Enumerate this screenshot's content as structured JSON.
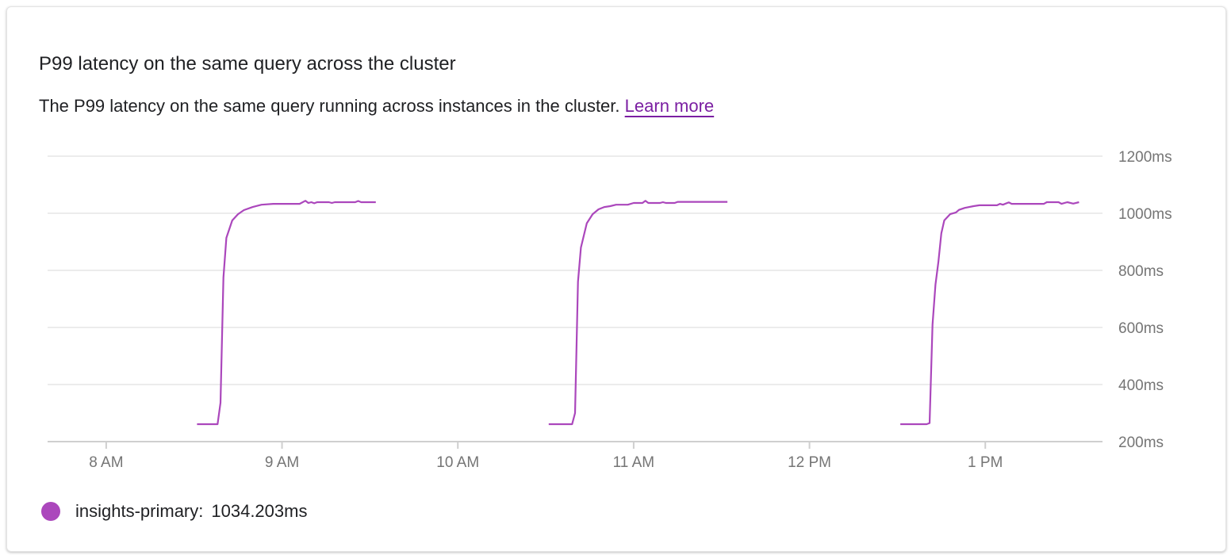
{
  "card": {
    "title": "P99 latency on the same query across the cluster",
    "description": "The P99 latency on the same query running across instances in the cluster.",
    "learn_more_label": "Learn more"
  },
  "legend": {
    "series_label": "insights-primary:",
    "current_value": "1034.203ms"
  },
  "chart_data": {
    "type": "line",
    "title": "",
    "xlabel": "",
    "ylabel": "",
    "xlim": [
      "07:40",
      "13:40"
    ],
    "ylim": [
      200,
      1200
    ],
    "x_ticks": [
      {
        "t": "08:00",
        "label": "8 AM"
      },
      {
        "t": "09:00",
        "label": "9 AM"
      },
      {
        "t": "10:00",
        "label": "10 AM"
      },
      {
        "t": "11:00",
        "label": "11 AM"
      },
      {
        "t": "12:00",
        "label": "12 PM"
      },
      {
        "t": "13:00",
        "label": "1 PM"
      }
    ],
    "y_ticks": [
      {
        "v": 1200,
        "label": "1200ms"
      },
      {
        "v": 1000,
        "label": "1000ms"
      },
      {
        "v": 800,
        "label": "800ms"
      },
      {
        "v": 600,
        "label": "600ms"
      },
      {
        "v": 400,
        "label": "400ms"
      },
      {
        "v": 200,
        "label": "200ms"
      }
    ],
    "grid": true,
    "legend_position": "bottom-left",
    "color": "#ab47bc",
    "series": [
      {
        "name": "insights-primary",
        "segments": [
          [
            [
              "08:31",
              261
            ],
            [
              "08:38",
              261
            ],
            [
              "08:39",
              336
            ],
            [
              "08:40",
              775
            ],
            [
              "08:41",
              914
            ],
            [
              "08:43",
              975
            ],
            [
              "08:45",
              997
            ],
            [
              "08:47",
              1011
            ],
            [
              "08:50",
              1022
            ],
            [
              "08:53",
              1030
            ],
            [
              "08:57",
              1033
            ],
            [
              "09:06",
              1033
            ],
            [
              "09:08",
              1044
            ],
            [
              "09:09",
              1036
            ],
            [
              "09:10",
              1039
            ],
            [
              "09:11",
              1035
            ],
            [
              "09:12",
              1039
            ],
            [
              "09:16",
              1039
            ],
            [
              "09:17",
              1036
            ],
            [
              "09:18",
              1039
            ],
            [
              "09:25",
              1039
            ],
            [
              "09:26",
              1043
            ],
            [
              "09:27",
              1039
            ],
            [
              "09:32",
              1039
            ]
          ],
          [
            [
              "10:31",
              261
            ],
            [
              "10:39",
              261
            ],
            [
              "10:40",
              300
            ],
            [
              "10:41",
              760
            ],
            [
              "10:42",
              880
            ],
            [
              "10:44",
              965
            ],
            [
              "10:46",
              997
            ],
            [
              "10:48",
              1014
            ],
            [
              "10:50",
              1022
            ],
            [
              "10:52",
              1025
            ],
            [
              "10:54",
              1030
            ],
            [
              "10:58",
              1030
            ],
            [
              "11:00",
              1036
            ],
            [
              "11:03",
              1036
            ],
            [
              "11:04",
              1044
            ],
            [
              "11:05",
              1036
            ],
            [
              "11:09",
              1036
            ],
            [
              "11:10",
              1039
            ],
            [
              "11:11",
              1036
            ],
            [
              "11:14",
              1036
            ],
            [
              "11:15",
              1040
            ],
            [
              "11:32",
              1040
            ]
          ],
          [
            [
              "12:31",
              261
            ],
            [
              "12:40",
              261
            ],
            [
              "12:41",
              265
            ],
            [
              "12:42",
              610
            ],
            [
              "12:43",
              750
            ],
            [
              "12:44",
              830
            ],
            [
              "12:45",
              930
            ],
            [
              "12:46",
              975
            ],
            [
              "12:48",
              997
            ],
            [
              "12:50",
              1003
            ],
            [
              "12:51",
              1012
            ],
            [
              "12:53",
              1019
            ],
            [
              "12:56",
              1025
            ],
            [
              "12:58",
              1028
            ],
            [
              "13:04",
              1028
            ],
            [
              "13:05",
              1033
            ],
            [
              "13:06",
              1030
            ],
            [
              "13:08",
              1038
            ],
            [
              "13:09",
              1033
            ],
            [
              "13:20",
              1033
            ],
            [
              "13:21",
              1039
            ],
            [
              "13:25",
              1039
            ],
            [
              "13:26",
              1033
            ],
            [
              "13:28",
              1039
            ],
            [
              "13:30",
              1034
            ],
            [
              "13:32",
              1039
            ]
          ]
        ]
      }
    ]
  }
}
